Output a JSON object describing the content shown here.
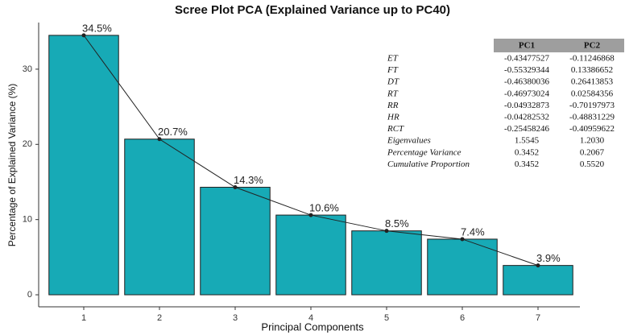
{
  "chart_data": {
    "type": "bar",
    "title": "Scree Plot PCA (Explained Variance up to PC40)",
    "x_label": "Principal Components",
    "y_label": "Percentage of Explained Variance (%)",
    "categories": [
      "1",
      "2",
      "3",
      "4",
      "5",
      "6",
      "7"
    ],
    "values": [
      34.5,
      20.7,
      14.3,
      10.6,
      8.5,
      7.4,
      3.9
    ],
    "value_labels": [
      "34.5%",
      "20.7%",
      "14.3%",
      "10.6%",
      "8.5%",
      "7.4%",
      "3.9%"
    ],
    "color": "#17aab6",
    "line_color": "#222222",
    "ylim": [
      -1.6,
      36.2
    ],
    "yticks": [
      0,
      10,
      20,
      30
    ]
  },
  "table": {
    "header": [
      "PC1",
      "PC2"
    ],
    "rows": [
      [
        "ET",
        "-0.43477527",
        "-0.11246868"
      ],
      [
        "FT",
        "-0.55329344",
        "0.13386652"
      ],
      [
        "DT",
        "-0.46380036",
        "0.26413853"
      ],
      [
        "RT",
        "-0.46973024",
        "0.02584356"
      ],
      [
        "RR",
        "-0.04932873",
        "-0.70197973"
      ],
      [
        "HR",
        "-0.04282532",
        "-0.48831229"
      ],
      [
        "RCT",
        "-0.25458246",
        "-0.40959622"
      ],
      [
        "Eigenvalues",
        "1.5545",
        "1.2030"
      ],
      [
        "Percentage Variance",
        "0.3452",
        "0.2067"
      ],
      [
        "Cumulative Proportion",
        "0.3452",
        "0.5520"
      ]
    ]
  }
}
